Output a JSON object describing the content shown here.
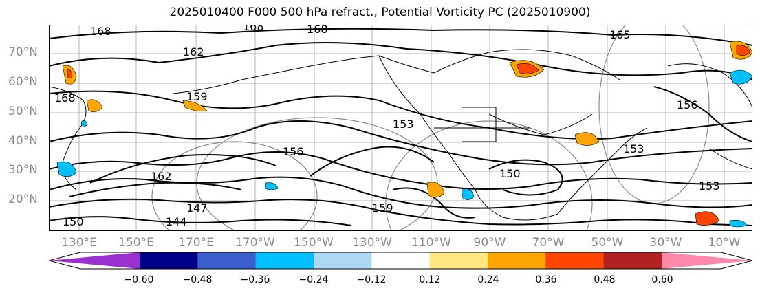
{
  "title": "2025010400 F000 500 hPa refract., Potential Vorticity PC (2025010900)",
  "lat_labels": [
    "70°N",
    "60°N",
    "50°N",
    "40°N",
    "30°N",
    "20°N"
  ],
  "lon_labels": [
    "130°E",
    "150°E",
    "170°E",
    "170°W",
    "150°W",
    "130°W",
    "110°W",
    "90°W",
    "70°W",
    "50°W",
    "30°W",
    "10°W"
  ],
  "contour_labels": [
    "168",
    "168",
    "168",
    "168",
    "162",
    "162",
    "165",
    "159",
    "159",
    "156",
    "156",
    "153",
    "153",
    "153",
    "150",
    "150",
    "147",
    "144"
  ],
  "colorbar": {
    "ticks": [
      "−0.60",
      "−0.48",
      "−0.36",
      "−0.24",
      "−0.12",
      "0.12",
      "0.24",
      "0.36",
      "0.48",
      "0.60"
    ],
    "colors": [
      "#9b30d0",
      "#00008b",
      "#3a5fcd",
      "#00bfff",
      "#add8f5",
      "#ffffff",
      "#ffe680",
      "#ffa500",
      "#ff4500",
      "#b22222",
      "#ff88aa"
    ]
  }
}
